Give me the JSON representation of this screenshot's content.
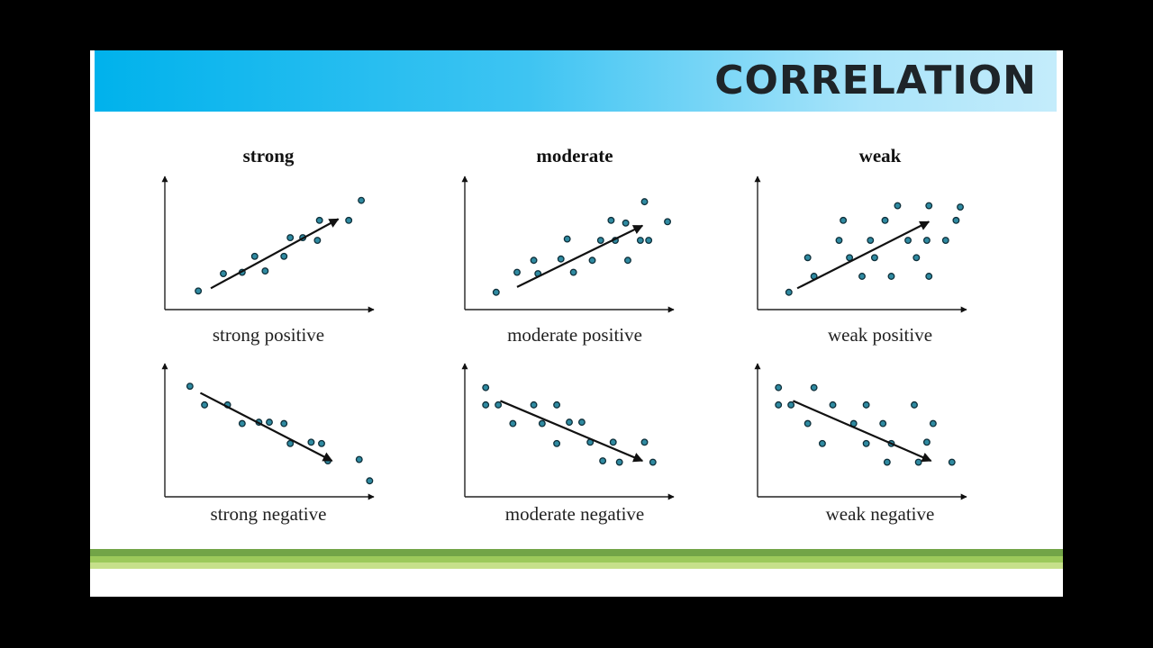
{
  "title": "CORRELATION",
  "columns": [
    "strong",
    "moderate",
    "weak"
  ],
  "panels": [
    {
      "caption": "strong positive",
      "points": [
        [
          0.16,
          0.14
        ],
        [
          0.28,
          0.27
        ],
        [
          0.37,
          0.28
        ],
        [
          0.43,
          0.4
        ],
        [
          0.48,
          0.29
        ],
        [
          0.57,
          0.4
        ],
        [
          0.6,
          0.54
        ],
        [
          0.66,
          0.54
        ],
        [
          0.73,
          0.52
        ],
        [
          0.74,
          0.67
        ],
        [
          0.88,
          0.67
        ],
        [
          0.94,
          0.82
        ]
      ],
      "trend": [
        [
          0.22,
          0.16
        ],
        [
          0.83,
          0.68
        ]
      ]
    },
    {
      "caption": "moderate positive",
      "points": [
        [
          0.15,
          0.13
        ],
        [
          0.25,
          0.28
        ],
        [
          0.33,
          0.37
        ],
        [
          0.35,
          0.27
        ],
        [
          0.46,
          0.38
        ],
        [
          0.49,
          0.53
        ],
        [
          0.52,
          0.28
        ],
        [
          0.61,
          0.37
        ],
        [
          0.65,
          0.52
        ],
        [
          0.7,
          0.67
        ],
        [
          0.72,
          0.52
        ],
        [
          0.77,
          0.65
        ],
        [
          0.78,
          0.37
        ],
        [
          0.84,
          0.52
        ],
        [
          0.86,
          0.81
        ],
        [
          0.88,
          0.52
        ],
        [
          0.97,
          0.66
        ]
      ],
      "trend": [
        [
          0.25,
          0.17
        ],
        [
          0.85,
          0.63
        ]
      ]
    },
    {
      "caption": "weak positive",
      "points": [
        [
          0.15,
          0.13
        ],
        [
          0.24,
          0.39
        ],
        [
          0.27,
          0.25
        ],
        [
          0.39,
          0.52
        ],
        [
          0.41,
          0.67
        ],
        [
          0.44,
          0.39
        ],
        [
          0.5,
          0.25
        ],
        [
          0.54,
          0.52
        ],
        [
          0.56,
          0.39
        ],
        [
          0.61,
          0.67
        ],
        [
          0.64,
          0.25
        ],
        [
          0.67,
          0.78
        ],
        [
          0.72,
          0.52
        ],
        [
          0.76,
          0.39
        ],
        [
          0.81,
          0.52
        ],
        [
          0.82,
          0.78
        ],
        [
          0.82,
          0.25
        ],
        [
          0.9,
          0.52
        ],
        [
          0.95,
          0.67
        ],
        [
          0.97,
          0.77
        ]
      ],
      "trend": [
        [
          0.19,
          0.16
        ],
        [
          0.82,
          0.66
        ]
      ]
    },
    {
      "caption": "strong negative",
      "points": [
        [
          0.12,
          0.83
        ],
        [
          0.19,
          0.69
        ],
        [
          0.3,
          0.69
        ],
        [
          0.37,
          0.55
        ],
        [
          0.45,
          0.56
        ],
        [
          0.5,
          0.56
        ],
        [
          0.57,
          0.55
        ],
        [
          0.6,
          0.4
        ],
        [
          0.7,
          0.41
        ],
        [
          0.75,
          0.4
        ],
        [
          0.78,
          0.27
        ],
        [
          0.93,
          0.28
        ],
        [
          0.98,
          0.12
        ]
      ],
      "trend": [
        [
          0.17,
          0.78
        ],
        [
          0.8,
          0.27
        ]
      ]
    },
    {
      "caption": "moderate negative",
      "points": [
        [
          0.1,
          0.82
        ],
        [
          0.1,
          0.69
        ],
        [
          0.16,
          0.69
        ],
        [
          0.23,
          0.55
        ],
        [
          0.33,
          0.69
        ],
        [
          0.37,
          0.55
        ],
        [
          0.44,
          0.69
        ],
        [
          0.44,
          0.4
        ],
        [
          0.5,
          0.56
        ],
        [
          0.56,
          0.56
        ],
        [
          0.6,
          0.41
        ],
        [
          0.66,
          0.27
        ],
        [
          0.71,
          0.41
        ],
        [
          0.74,
          0.26
        ],
        [
          0.86,
          0.41
        ],
        [
          0.9,
          0.26
        ]
      ],
      "trend": [
        [
          0.17,
          0.72
        ],
        [
          0.85,
          0.27
        ]
      ]
    },
    {
      "caption": "weak negative",
      "points": [
        [
          0.1,
          0.82
        ],
        [
          0.1,
          0.69
        ],
        [
          0.16,
          0.69
        ],
        [
          0.24,
          0.55
        ],
        [
          0.27,
          0.82
        ],
        [
          0.31,
          0.4
        ],
        [
          0.36,
          0.69
        ],
        [
          0.46,
          0.55
        ],
        [
          0.52,
          0.69
        ],
        [
          0.52,
          0.4
        ],
        [
          0.6,
          0.55
        ],
        [
          0.62,
          0.26
        ],
        [
          0.64,
          0.4
        ],
        [
          0.75,
          0.69
        ],
        [
          0.77,
          0.26
        ],
        [
          0.81,
          0.41
        ],
        [
          0.84,
          0.55
        ],
        [
          0.93,
          0.26
        ]
      ],
      "trend": [
        [
          0.17,
          0.72
        ],
        [
          0.83,
          0.27
        ]
      ]
    }
  ]
}
